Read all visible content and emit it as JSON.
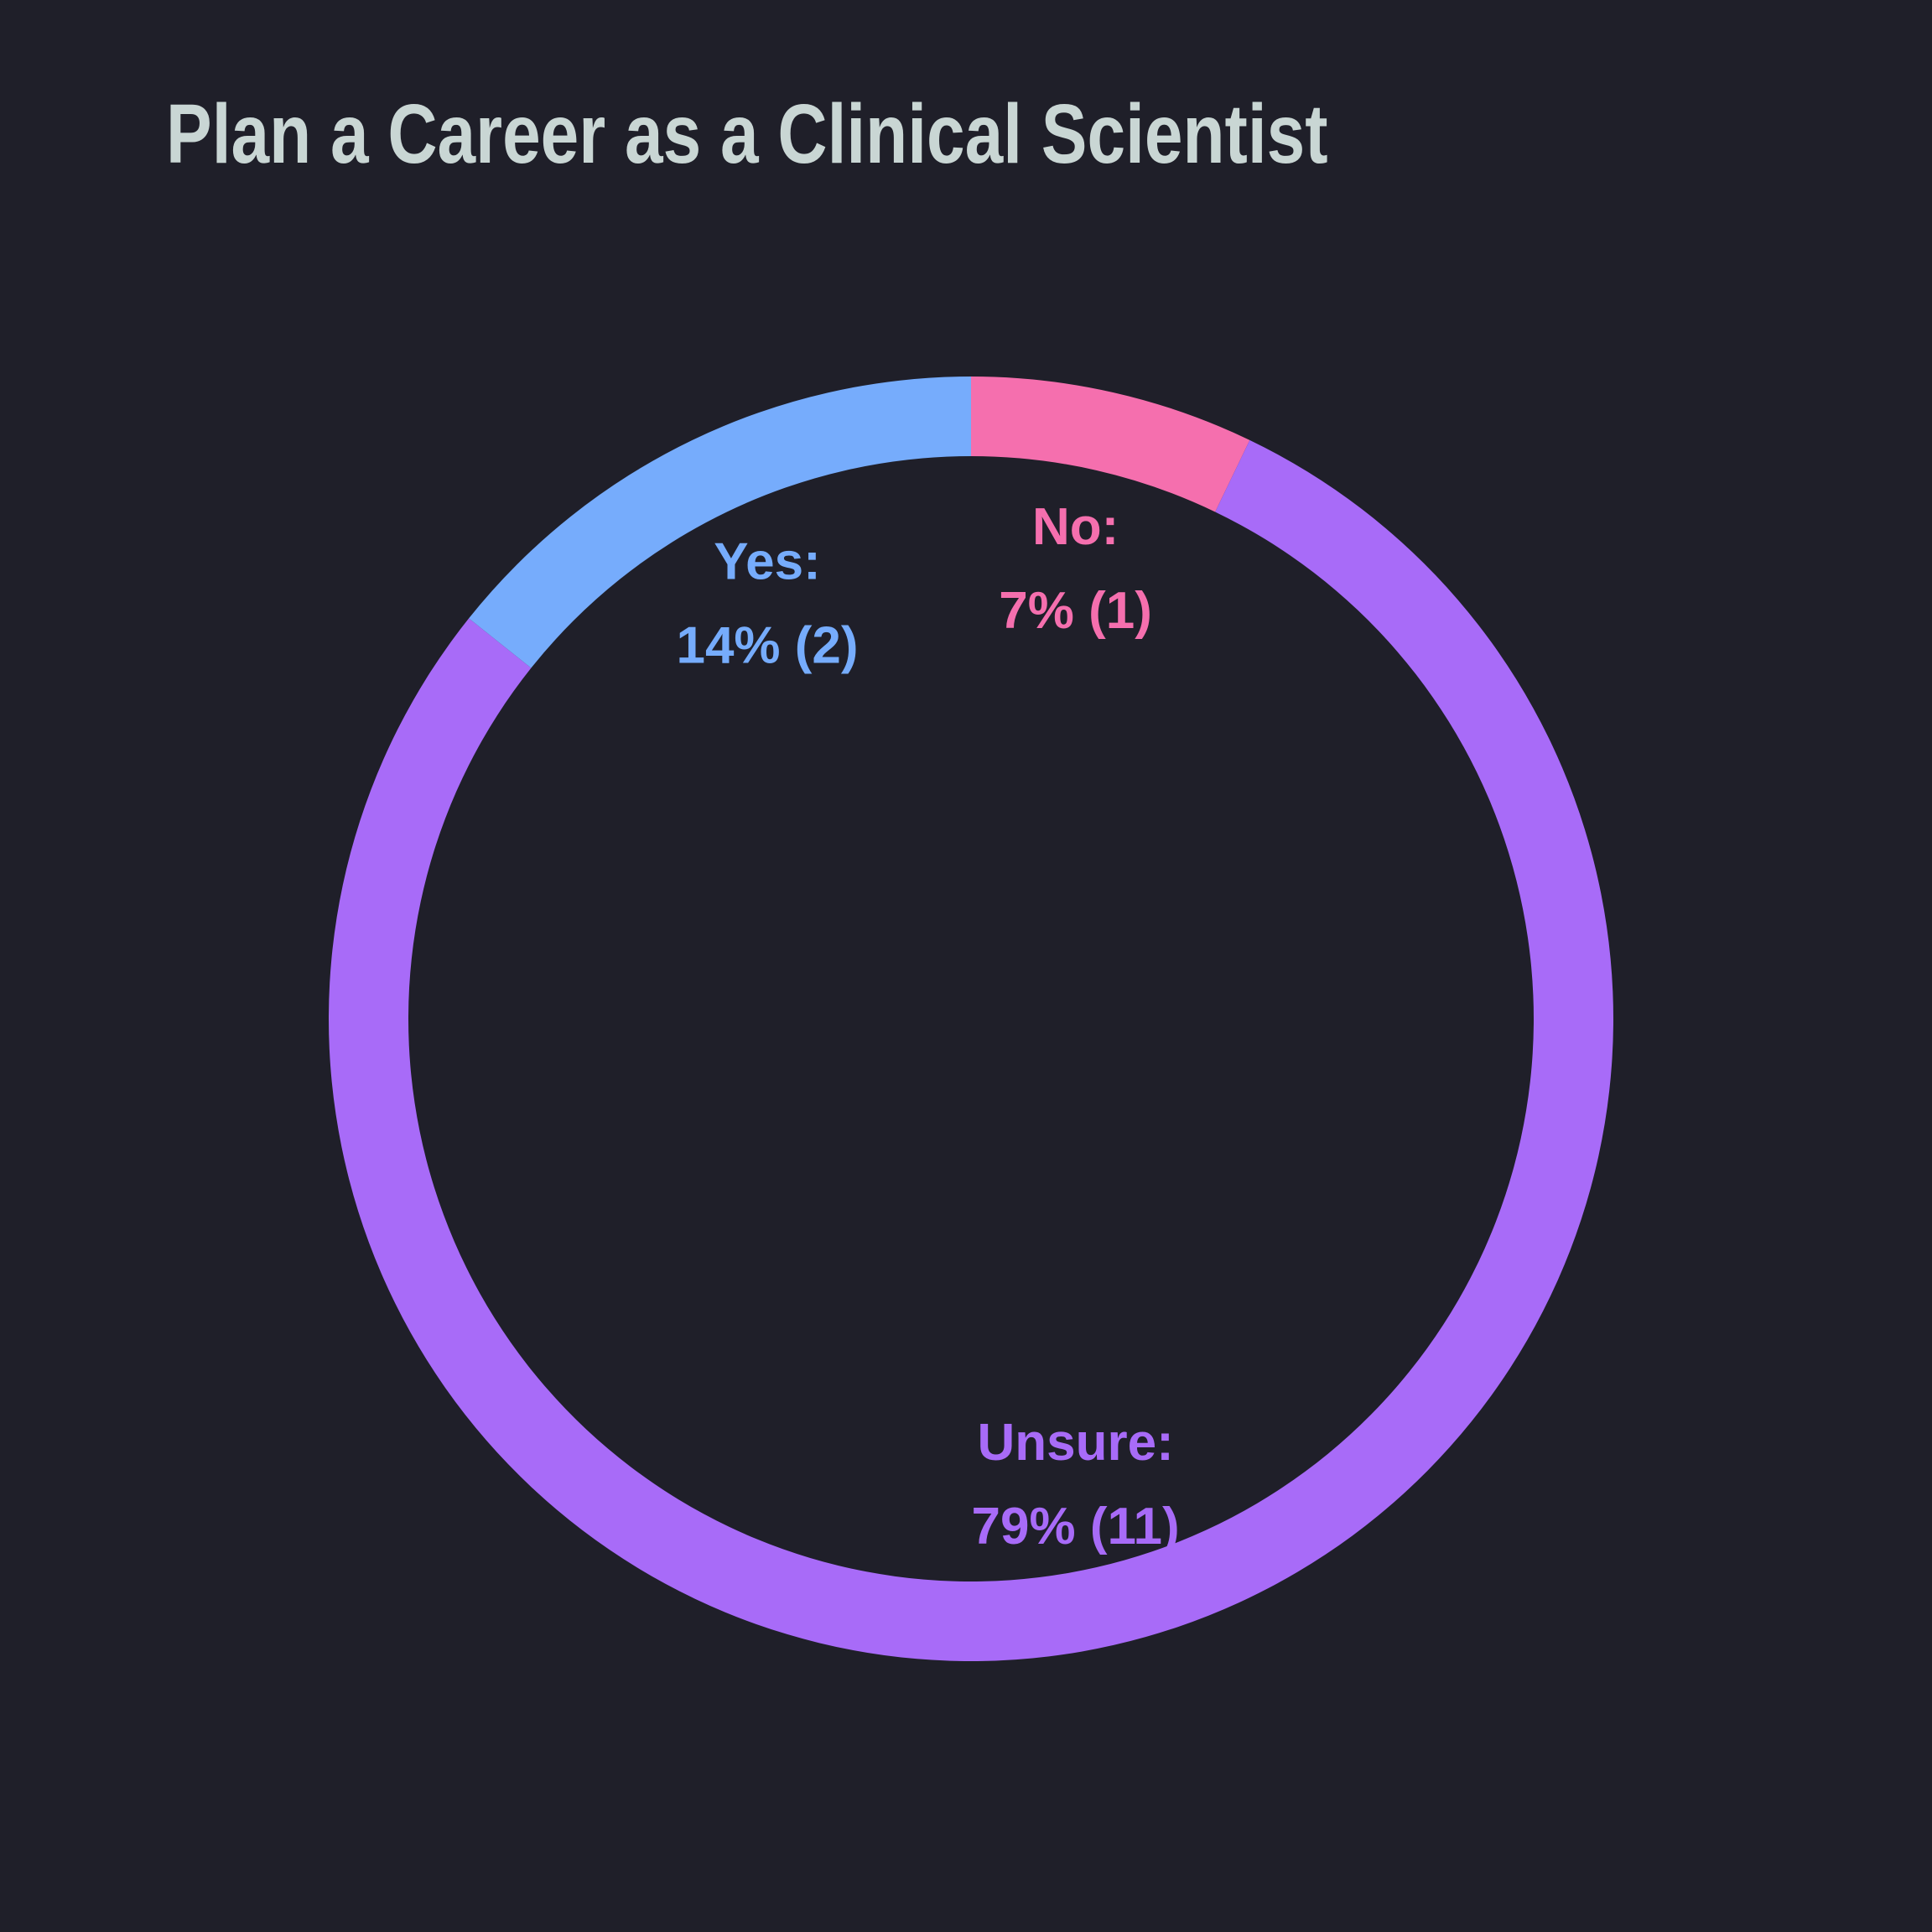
{
  "chart_data": {
    "type": "pie",
    "title": "Plan a Career as a Clinical Scientist",
    "title_color": "#c9d6d4",
    "background": "#1f1f29",
    "style": "donut",
    "slices": [
      {
        "label": "No",
        "value": 1,
        "percent": 7,
        "color": "#f56fae",
        "label_text": "No:",
        "value_text": "7% (1)"
      },
      {
        "label": "Unsure",
        "value": 11,
        "percent": 79,
        "color": "#a86bf8",
        "label_text": "Unsure:",
        "value_text": "79% (11)"
      },
      {
        "label": "Yes",
        "value": 2,
        "percent": 14,
        "color": "#76acfc",
        "label_text": "Yes:",
        "value_text": "14% (2)"
      }
    ]
  }
}
